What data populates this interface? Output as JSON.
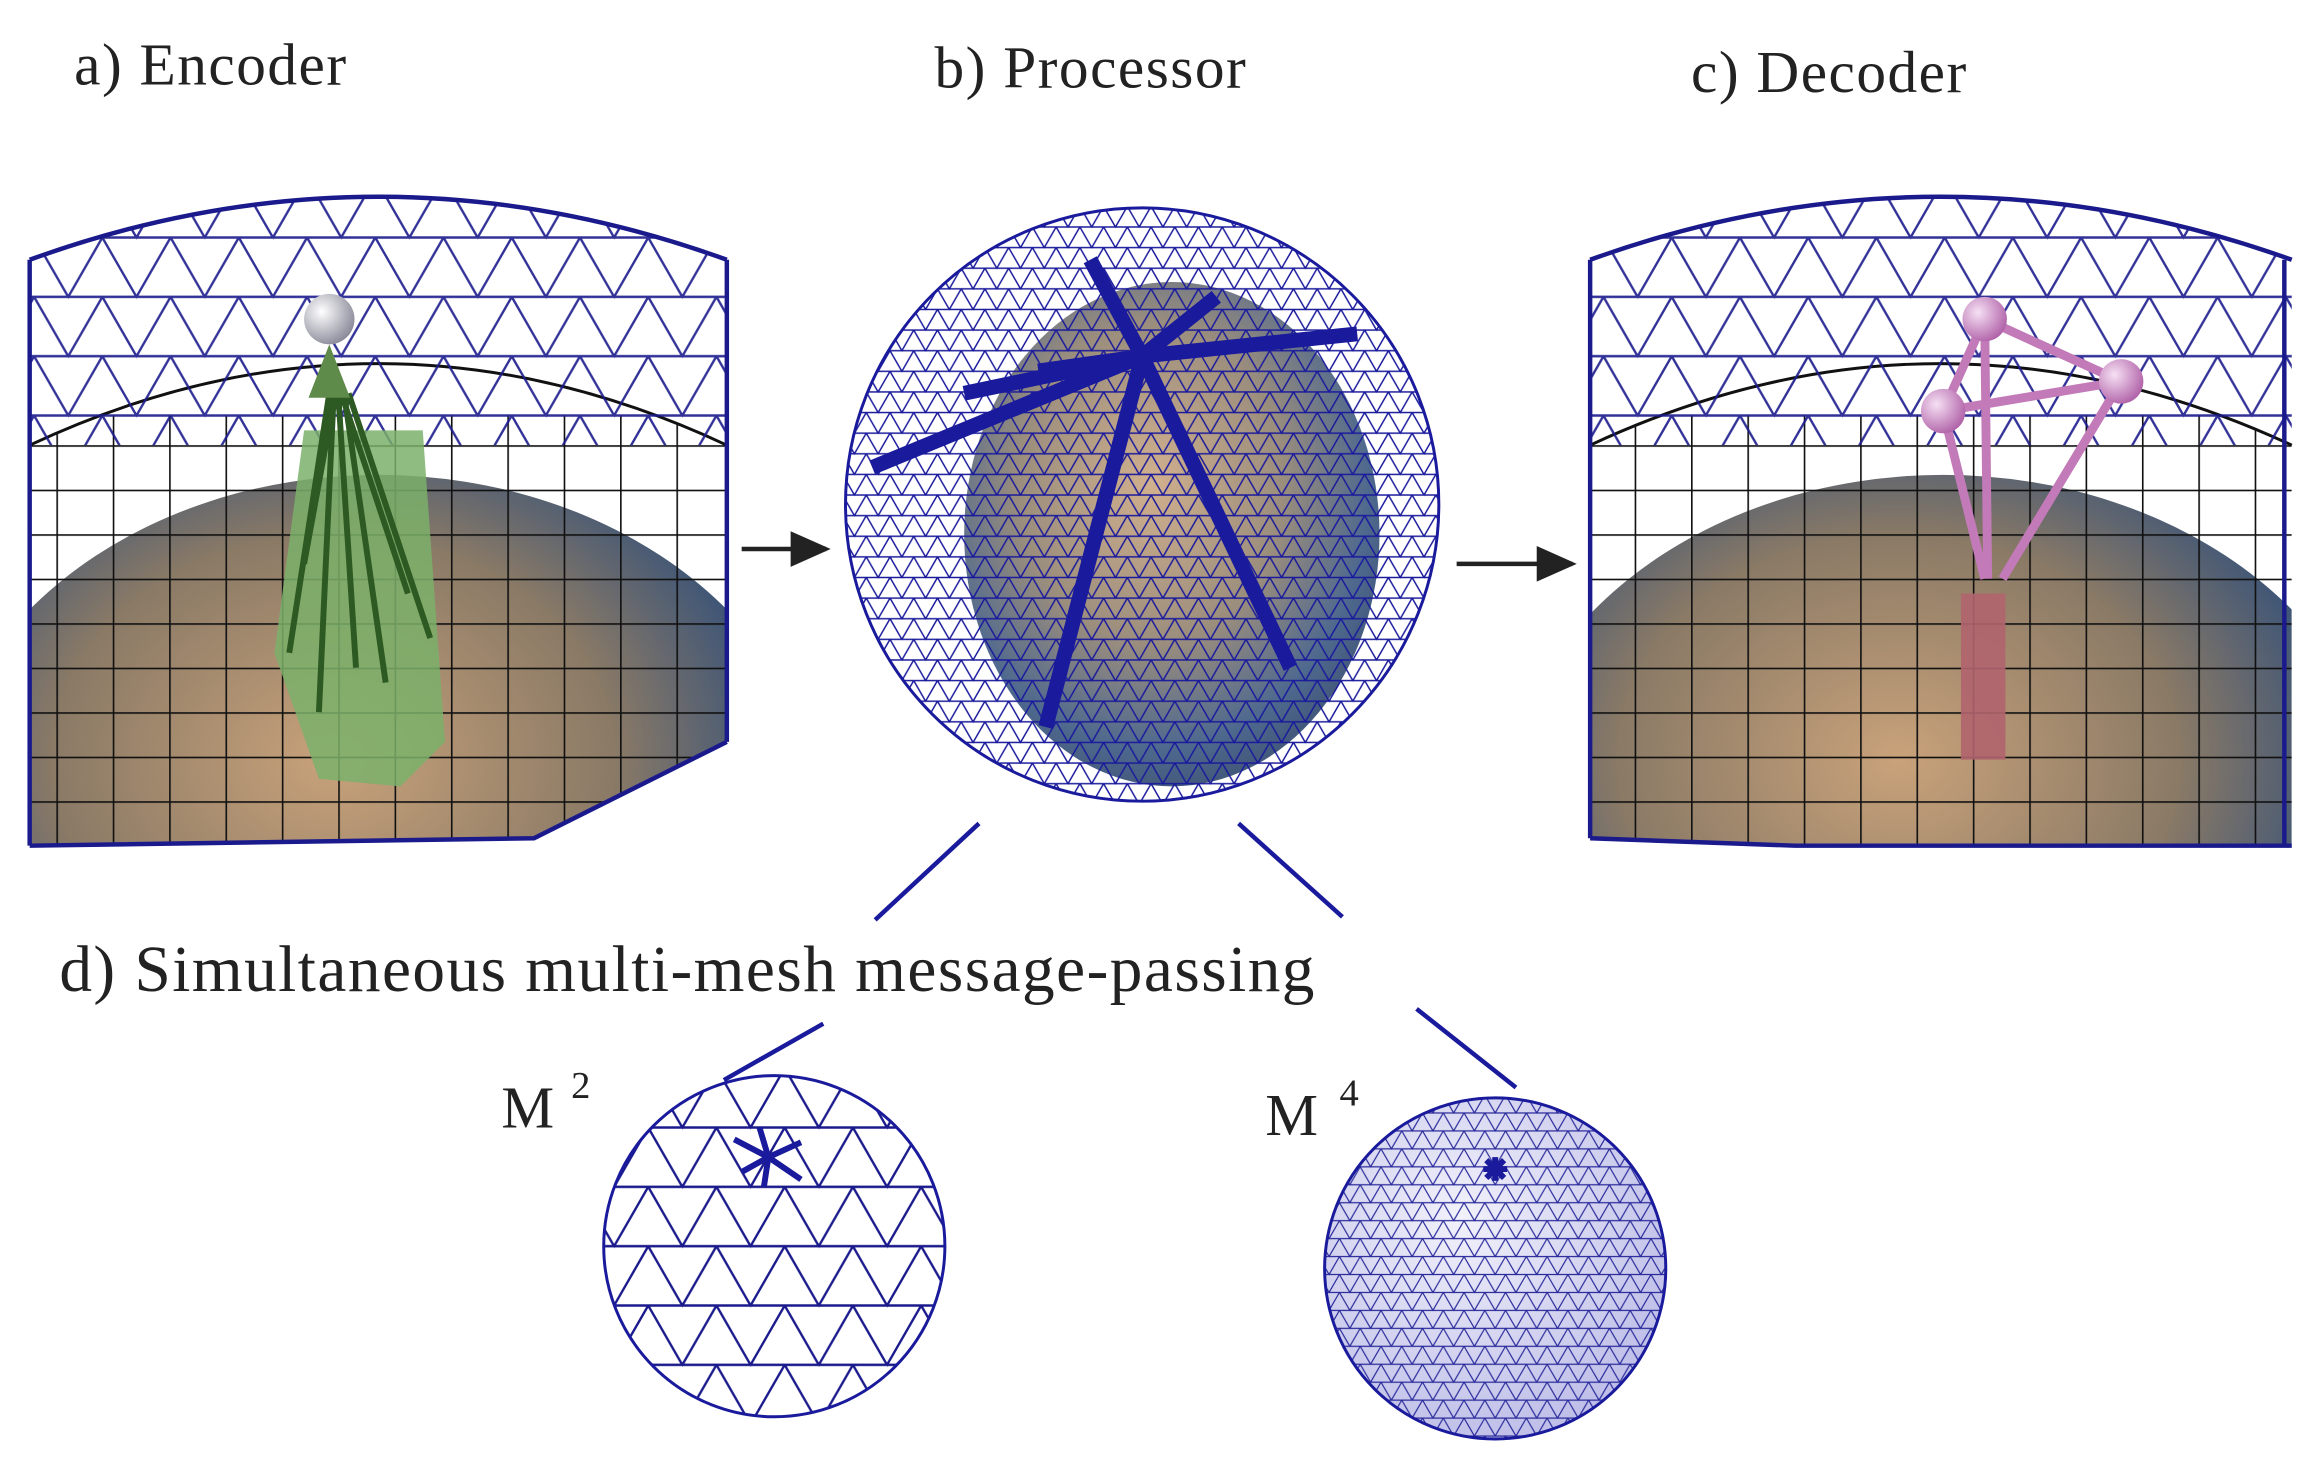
{
  "panels": [
    {
      "label": "a) Encoder"
    },
    {
      "label": "b) Processor"
    },
    {
      "label": "c) Decoder"
    }
  ],
  "detail": {
    "label": "d) Simultaneous multi-mesh message-passing",
    "meshes": [
      {
        "symbol": "M",
        "superscript": "2"
      },
      {
        "symbol": "M",
        "superscript": "4"
      }
    ]
  }
}
